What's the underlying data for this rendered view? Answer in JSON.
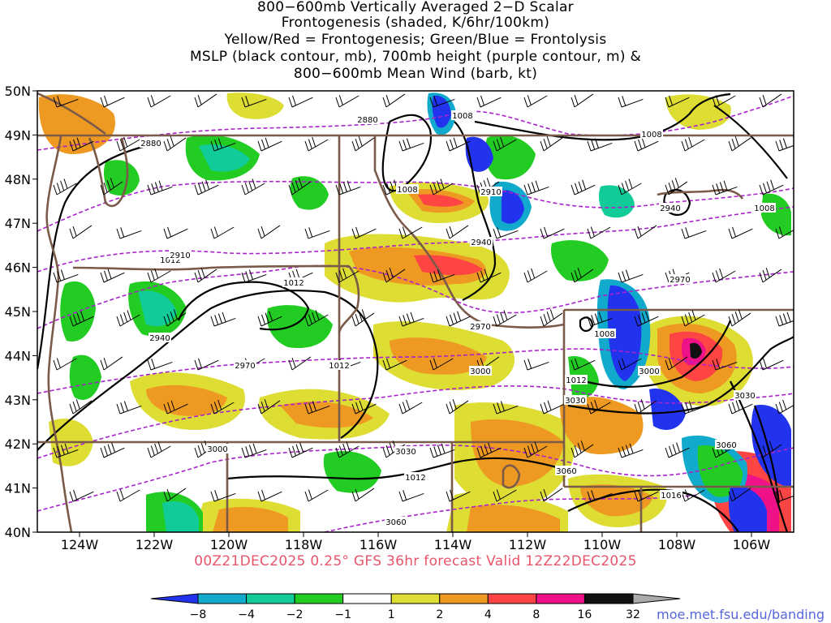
{
  "title_lines": [
    "800−600mb Vertically Averaged 2−D Scalar",
    "Frontogenesis (shaded, K/6hr/100km)",
    "Yellow/Red = Frontogenesis;  Green/Blue = Frontolysis",
    "MSLP (black contour, mb), 700mb height (purple contour, m) &",
    "800−600mb Mean Wind (barb, kt)"
  ],
  "lat_labels": [
    "50N",
    "49N",
    "48N",
    "47N",
    "46N",
    "45N",
    "44N",
    "43N",
    "42N",
    "41N",
    "40N"
  ],
  "lon_labels": [
    "124W",
    "122W",
    "120W",
    "118W",
    "116W",
    "114W",
    "112W",
    "110W",
    "108W",
    "106W"
  ],
  "footer": "00Z21DEC2025 0.25° GFS 36hr forecast Valid 12Z22DEC2025",
  "credit": "moe.met.fsu.edu/banding",
  "colorbar": {
    "ticks": [
      "−8",
      "−4",
      "−2",
      "−1",
      "1",
      "2",
      "4",
      "8",
      "16",
      "32"
    ],
    "colors": [
      "#2233ee",
      "#11aacc",
      "#11cc99",
      "#22cc22",
      "#ffffff",
      "#dddd33",
      "#ee9922",
      "#ff4444",
      "#ee1188",
      "#111111",
      "#aaaaaa"
    ]
  },
  "colors": {
    "frontolysis_strong": "#2233ee",
    "frontolysis_med": "#11aacc",
    "frontolysis_weak": "#22cc22",
    "frontogenesis_weak": "#dddd33",
    "frontogenesis_med": "#ee9922",
    "frontogenesis_strong": "#ff4444",
    "mslp_contour": "#000000",
    "height_contour": "#aa22cc",
    "borders": "#7a5a48",
    "footer_text": "#e8556b"
  },
  "mslp_labels": [
    "1008",
    "1008",
    "1008",
    "1008",
    "1008",
    "1012",
    "1012",
    "1012",
    "1012",
    "1012",
    "1016"
  ],
  "height_labels": [
    "2880",
    "2880",
    "2910",
    "2910",
    "2940",
    "2940",
    "2940",
    "2970",
    "2970",
    "2970",
    "3000",
    "3000",
    "3000",
    "3030",
    "3030",
    "3030",
    "3060",
    "3060",
    "3060"
  ]
}
